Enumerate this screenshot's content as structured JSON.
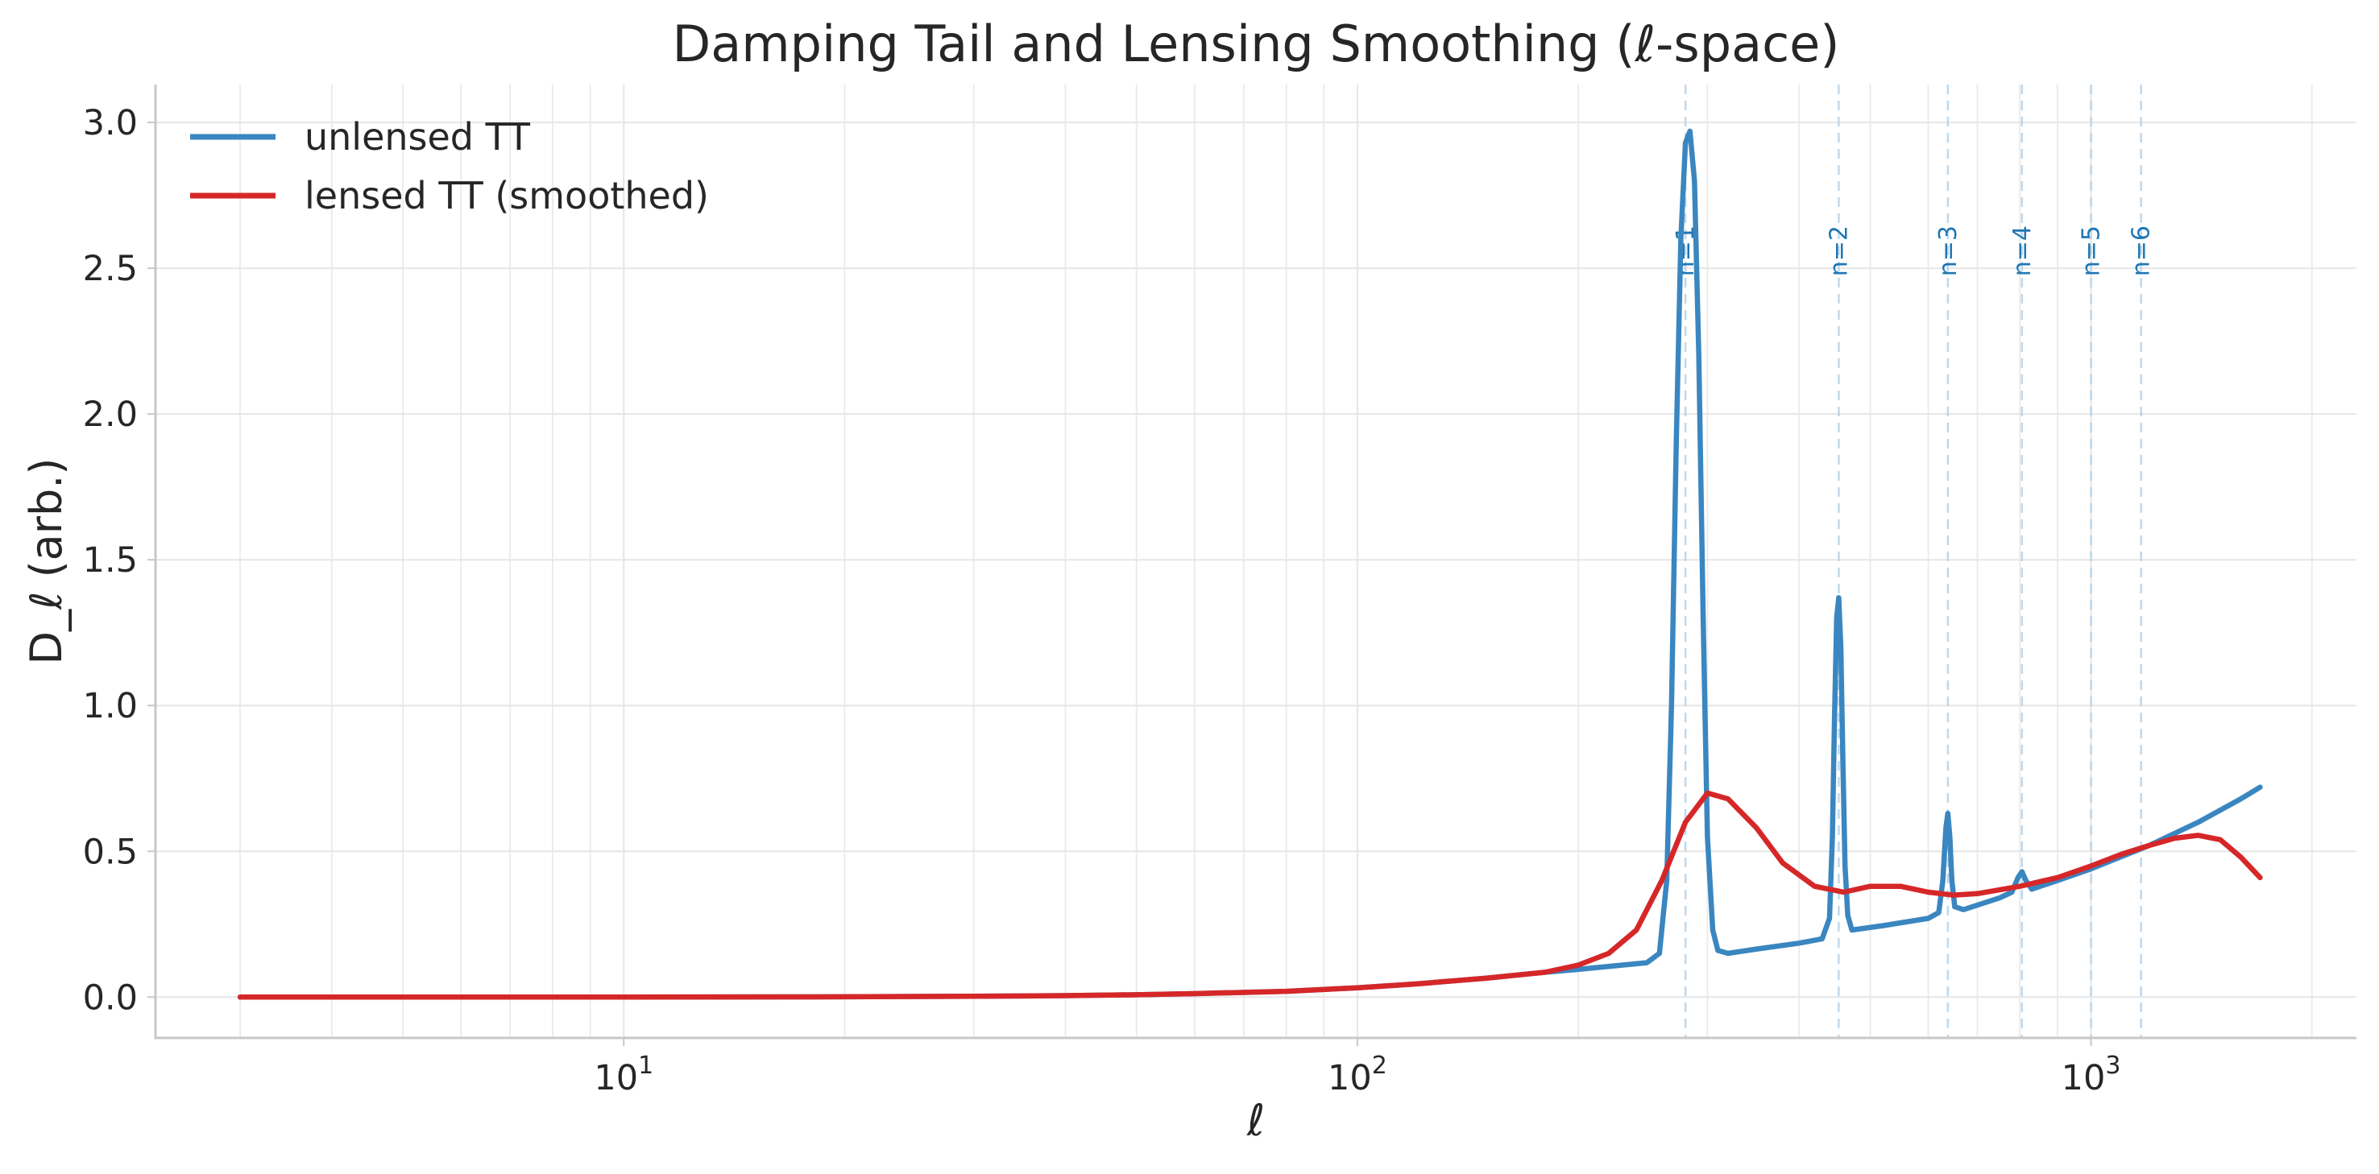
{
  "chart_data": {
    "type": "line",
    "title": "Damping Tail and Lensing Smoothing (ℓ-space)",
    "xlabel": "ℓ",
    "ylabel": "D_ℓ (arb.)",
    "xscale": "log",
    "xlim": [
      2.3,
      2300
    ],
    "ylim": [
      -0.14,
      3.13
    ],
    "xticks": [
      {
        "value": 10,
        "base": "10",
        "exp": "1"
      },
      {
        "value": 100,
        "base": "10",
        "exp": "2"
      },
      {
        "value": 1000,
        "base": "10",
        "exp": "3"
      }
    ],
    "yticks": [
      {
        "value": 0.0,
        "label": "0.0"
      },
      {
        "value": 0.5,
        "label": "0.5"
      },
      {
        "value": 1.0,
        "label": "1.0"
      },
      {
        "value": 1.5,
        "label": "1.5"
      },
      {
        "value": 2.0,
        "label": "2.0"
      },
      {
        "value": 2.5,
        "label": "2.5"
      },
      {
        "value": 3.0,
        "label": "3.0"
      }
    ],
    "grid": true,
    "legend_position": "top-left",
    "series": [
      {
        "name": "unlensed TT",
        "color": "#3a86c0",
        "points": [
          [
            3,
            0.0
          ],
          [
            10,
            0.0
          ],
          [
            20,
            0.001
          ],
          [
            30,
            0.003
          ],
          [
            40,
            0.005
          ],
          [
            50,
            0.008
          ],
          [
            60,
            0.012
          ],
          [
            80,
            0.02
          ],
          [
            100,
            0.032
          ],
          [
            120,
            0.045
          ],
          [
            150,
            0.065
          ],
          [
            180,
            0.085
          ],
          [
            200,
            0.095
          ],
          [
            230,
            0.11
          ],
          [
            248,
            0.118
          ],
          [
            258,
            0.15
          ],
          [
            264,
            0.4
          ],
          [
            268,
            1.0
          ],
          [
            272,
            1.9
          ],
          [
            276,
            2.6
          ],
          [
            280,
            2.93
          ],
          [
            284,
            2.97
          ],
          [
            288,
            2.8
          ],
          [
            292,
            2.2
          ],
          [
            296,
            1.3
          ],
          [
            300,
            0.55
          ],
          [
            305,
            0.23
          ],
          [
            310,
            0.16
          ],
          [
            320,
            0.15
          ],
          [
            350,
            0.165
          ],
          [
            400,
            0.185
          ],
          [
            430,
            0.2
          ],
          [
            440,
            0.27
          ],
          [
            444,
            0.55
          ],
          [
            447,
            0.95
          ],
          [
            450,
            1.3
          ],
          [
            453,
            1.37
          ],
          [
            456,
            1.2
          ],
          [
            459,
            0.8
          ],
          [
            462,
            0.45
          ],
          [
            466,
            0.28
          ],
          [
            472,
            0.23
          ],
          [
            520,
            0.245
          ],
          [
            600,
            0.27
          ],
          [
            620,
            0.29
          ],
          [
            628,
            0.4
          ],
          [
            634,
            0.58
          ],
          [
            638,
            0.63
          ],
          [
            642,
            0.55
          ],
          [
            646,
            0.4
          ],
          [
            652,
            0.31
          ],
          [
            670,
            0.3
          ],
          [
            750,
            0.34
          ],
          [
            780,
            0.36
          ],
          [
            795,
            0.41
          ],
          [
            805,
            0.43
          ],
          [
            815,
            0.4
          ],
          [
            830,
            0.37
          ],
          [
            900,
            0.4
          ],
          [
            1000,
            0.44
          ],
          [
            1200,
            0.52
          ],
          [
            1400,
            0.6
          ],
          [
            1600,
            0.68
          ],
          [
            1700,
            0.72
          ]
        ]
      },
      {
        "name": "lensed TT (smoothed)",
        "color": "#d62728",
        "points": [
          [
            3,
            0.0
          ],
          [
            10,
            0.0
          ],
          [
            20,
            0.001
          ],
          [
            30,
            0.003
          ],
          [
            40,
            0.005
          ],
          [
            50,
            0.008
          ],
          [
            60,
            0.012
          ],
          [
            80,
            0.02
          ],
          [
            100,
            0.032
          ],
          [
            120,
            0.045
          ],
          [
            150,
            0.065
          ],
          [
            180,
            0.085
          ],
          [
            200,
            0.11
          ],
          [
            220,
            0.15
          ],
          [
            240,
            0.23
          ],
          [
            260,
            0.4
          ],
          [
            280,
            0.6
          ],
          [
            300,
            0.7
          ],
          [
            320,
            0.68
          ],
          [
            350,
            0.58
          ],
          [
            380,
            0.46
          ],
          [
            420,
            0.38
          ],
          [
            460,
            0.36
          ],
          [
            500,
            0.38
          ],
          [
            550,
            0.38
          ],
          [
            600,
            0.36
          ],
          [
            650,
            0.35
          ],
          [
            700,
            0.355
          ],
          [
            800,
            0.38
          ],
          [
            900,
            0.41
          ],
          [
            1000,
            0.45
          ],
          [
            1100,
            0.49
          ],
          [
            1200,
            0.52
          ],
          [
            1300,
            0.545
          ],
          [
            1400,
            0.555
          ],
          [
            1500,
            0.54
          ],
          [
            1600,
            0.48
          ],
          [
            1700,
            0.41
          ]
        ]
      }
    ],
    "peak_markers": [
      {
        "label": "n=1",
        "ell": 280
      },
      {
        "label": "n=2",
        "ell": 453
      },
      {
        "label": "n=3",
        "ell": 638
      },
      {
        "label": "n=4",
        "ell": 805
      },
      {
        "label": "n=5",
        "ell": 1000
      },
      {
        "label": "n=6",
        "ell": 1170
      }
    ]
  }
}
